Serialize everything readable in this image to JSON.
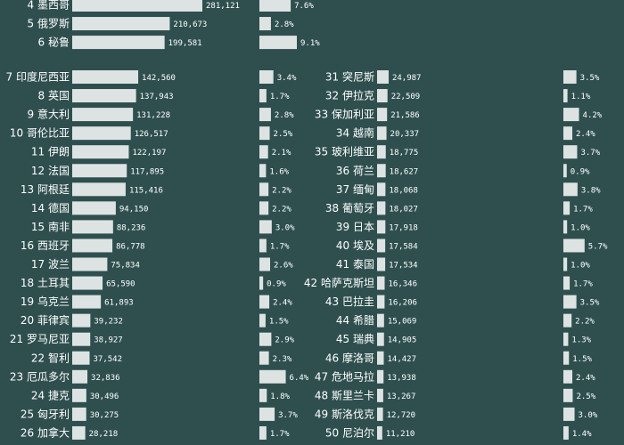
{
  "chart_data": {
    "type": "bar",
    "colors": {
      "background": "#2f4f4f",
      "bar": "#dde3e3",
      "text": "#ffffff"
    },
    "value_axis_max": 281121,
    "pct_axis_max": 9.1,
    "rows": [
      {
        "rank": 4,
        "name": "墨西哥",
        "value": 281121,
        "value_label": "281,121",
        "pct": 7.6,
        "pct_label": "7.6%"
      },
      {
        "rank": 5,
        "name": "俄罗斯",
        "value": 210673,
        "value_label": "210,673",
        "pct": 2.8,
        "pct_label": "2.8%"
      },
      {
        "rank": 6,
        "name": "秘鲁",
        "value": 199581,
        "value_label": "199,581",
        "pct": 9.1,
        "pct_label": "9.1%"
      },
      {
        "rank": 7,
        "name": "印度尼西亚",
        "value": 142560,
        "value_label": "142,560",
        "pct": 3.4,
        "pct_label": "3.4%"
      },
      {
        "rank": 8,
        "name": "英国",
        "value": 137943,
        "value_label": "137,943",
        "pct": 1.7,
        "pct_label": "1.7%"
      },
      {
        "rank": 9,
        "name": "意大利",
        "value": 131228,
        "value_label": "131,228",
        "pct": 2.8,
        "pct_label": "2.8%"
      },
      {
        "rank": 10,
        "name": "哥伦比亚",
        "value": 126517,
        "value_label": "126,517",
        "pct": 2.5,
        "pct_label": "2.5%"
      },
      {
        "rank": 11,
        "name": "伊朗",
        "value": 122197,
        "value_label": "122,197",
        "pct": 2.1,
        "pct_label": "2.1%"
      },
      {
        "rank": 12,
        "name": "法国",
        "value": 117895,
        "value_label": "117,895",
        "pct": 1.6,
        "pct_label": "1.6%"
      },
      {
        "rank": 13,
        "name": "阿根廷",
        "value": 115416,
        "value_label": "115,416",
        "pct": 2.2,
        "pct_label": "2.2%"
      },
      {
        "rank": 14,
        "name": "德国",
        "value": 94150,
        "value_label": "94,150",
        "pct": 2.2,
        "pct_label": "2.2%"
      },
      {
        "rank": 15,
        "name": "南非",
        "value": 88236,
        "value_label": "88,236",
        "pct": 3.0,
        "pct_label": "3.0%"
      },
      {
        "rank": 16,
        "name": "西班牙",
        "value": 86778,
        "value_label": "86,778",
        "pct": 1.7,
        "pct_label": "1.7%"
      },
      {
        "rank": 17,
        "name": "波兰",
        "value": 75834,
        "value_label": "75,834",
        "pct": 2.6,
        "pct_label": "2.6%"
      },
      {
        "rank": 18,
        "name": "土耳其",
        "value": 65590,
        "value_label": "65,590",
        "pct": 0.9,
        "pct_label": "0.9%"
      },
      {
        "rank": 19,
        "name": "乌克兰",
        "value": 61893,
        "value_label": "61,893",
        "pct": 2.4,
        "pct_label": "2.4%"
      },
      {
        "rank": 20,
        "name": "菲律宾",
        "value": 39232,
        "value_label": "39,232",
        "pct": 1.5,
        "pct_label": "1.5%"
      },
      {
        "rank": 21,
        "name": "罗马尼亚",
        "value": 38927,
        "value_label": "38,927",
        "pct": 2.9,
        "pct_label": "2.9%"
      },
      {
        "rank": 22,
        "name": "智利",
        "value": 37542,
        "value_label": "37,542",
        "pct": 2.3,
        "pct_label": "2.3%"
      },
      {
        "rank": 23,
        "name": "厄瓜多尔",
        "value": 32836,
        "value_label": "32,836",
        "pct": 6.4,
        "pct_label": "6.4%"
      },
      {
        "rank": 24,
        "name": "捷克",
        "value": 30496,
        "value_label": "30,496",
        "pct": 1.8,
        "pct_label": "1.8%"
      },
      {
        "rank": 25,
        "name": "匈牙利",
        "value": 30275,
        "value_label": "30,275",
        "pct": 3.7,
        "pct_label": "3.7%"
      },
      {
        "rank": 26,
        "name": "加拿大",
        "value": 28218,
        "value_label": "28,218",
        "pct": 1.7,
        "pct_label": "1.7%"
      },
      {
        "rank": 31,
        "name": "突尼斯",
        "value": 24987,
        "value_label": "24,987",
        "pct": 3.5,
        "pct_label": "3.5%"
      },
      {
        "rank": 32,
        "name": "伊拉克",
        "value": 22509,
        "value_label": "22,509",
        "pct": 1.1,
        "pct_label": "1.1%"
      },
      {
        "rank": 33,
        "name": "保加利亚",
        "value": 21586,
        "value_label": "21,586",
        "pct": 4.2,
        "pct_label": "4.2%"
      },
      {
        "rank": 34,
        "name": "越南",
        "value": 20337,
        "value_label": "20,337",
        "pct": 2.4,
        "pct_label": "2.4%"
      },
      {
        "rank": 35,
        "name": "玻利维亚",
        "value": 18775,
        "value_label": "18,775",
        "pct": 3.7,
        "pct_label": "3.7%"
      },
      {
        "rank": 36,
        "name": "荷兰",
        "value": 18627,
        "value_label": "18,627",
        "pct": 0.9,
        "pct_label": "0.9%"
      },
      {
        "rank": 37,
        "name": "缅甸",
        "value": 18068,
        "value_label": "18,068",
        "pct": 3.8,
        "pct_label": "3.8%"
      },
      {
        "rank": 38,
        "name": "葡萄牙",
        "value": 18027,
        "value_label": "18,027",
        "pct": 1.7,
        "pct_label": "1.7%"
      },
      {
        "rank": 39,
        "name": "日本",
        "value": 17918,
        "value_label": "17,918",
        "pct": 1.0,
        "pct_label": "1.0%"
      },
      {
        "rank": 40,
        "name": "埃及",
        "value": 17584,
        "value_label": "17,584",
        "pct": 5.7,
        "pct_label": "5.7%"
      },
      {
        "rank": 41,
        "name": "泰国",
        "value": 17534,
        "value_label": "17,534",
        "pct": 1.0,
        "pct_label": "1.0%"
      },
      {
        "rank": 42,
        "name": "哈萨克斯坦",
        "value": 16346,
        "value_label": "16,346",
        "pct": 1.7,
        "pct_label": "1.7%"
      },
      {
        "rank": 43,
        "name": "巴拉圭",
        "value": 16206,
        "value_label": "16,206",
        "pct": 3.5,
        "pct_label": "3.5%"
      },
      {
        "rank": 44,
        "name": "希腊",
        "value": 15069,
        "value_label": "15,069",
        "pct": 2.2,
        "pct_label": "2.2%"
      },
      {
        "rank": 45,
        "name": "瑞典",
        "value": 14905,
        "value_label": "14,905",
        "pct": 1.3,
        "pct_label": "1.3%"
      },
      {
        "rank": 46,
        "name": "摩洛哥",
        "value": 14427,
        "value_label": "14,427",
        "pct": 1.5,
        "pct_label": "1.5%"
      },
      {
        "rank": 47,
        "name": "危地马拉",
        "value": 13938,
        "value_label": "13,938",
        "pct": 2.4,
        "pct_label": "2.4%"
      },
      {
        "rank": 48,
        "name": "斯里兰卡",
        "value": 13267,
        "value_label": "13,267",
        "pct": 2.5,
        "pct_label": "2.5%"
      },
      {
        "rank": 49,
        "name": "斯洛伐克",
        "value": 12720,
        "value_label": "12,720",
        "pct": 3.0,
        "pct_label": "3.0%"
      },
      {
        "rank": 50,
        "name": "尼泊尔",
        "value": 11210,
        "value_label": "11,210",
        "pct": 1.4,
        "pct_label": "1.4%"
      }
    ]
  }
}
